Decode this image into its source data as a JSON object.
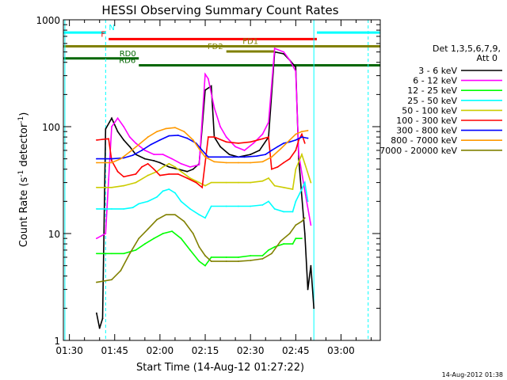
{
  "chart_data": {
    "type": "line",
    "title": "HESSI Observing Summary Count Rates",
    "xlabel": "Start Time (14-Aug-12 01:27:22)",
    "ylabel_main": "Count Rate (s",
    "ylabel_sup1": "-1",
    "ylabel_mid": " detector",
    "ylabel_sup2": "-1",
    "ylabel_end": ")",
    "yscale": "log",
    "ylim": [
      1,
      1000
    ],
    "xlim_min": [
      88,
      193
    ],
    "x_ticks": [
      {
        "min": 90,
        "label": "01:30"
      },
      {
        "min": 105,
        "label": "01:45"
      },
      {
        "min": 120,
        "label": "02:00"
      },
      {
        "min": 135,
        "label": "02:15"
      },
      {
        "min": 150,
        "label": "02:30"
      },
      {
        "min": 165,
        "label": "02:45"
      },
      {
        "min": 180,
        "label": "03:00"
      }
    ],
    "y_ticks": [
      {
        "value": 1,
        "label": "1"
      },
      {
        "value": 10,
        "label": "10"
      },
      {
        "value": 100,
        "label": "100"
      },
      {
        "value": 1000,
        "label": "1000"
      }
    ],
    "legend": {
      "title_line1": "Det 1,3,5,6,7,9,",
      "title_line2": "Att 0",
      "placement": "right"
    },
    "footer_timestamp": "14-Aug-2012 01:38",
    "series": [
      {
        "name": "3 - 6 keV",
        "color": "#000000",
        "points": [
          [
            99,
            1.8
          ],
          [
            100,
            1.3
          ],
          [
            101,
            1.6
          ],
          [
            102,
            95
          ],
          [
            104,
            120
          ],
          [
            106,
            90
          ],
          [
            108,
            75
          ],
          [
            110,
            65
          ],
          [
            112,
            55
          ],
          [
            115,
            50
          ],
          [
            118,
            48
          ],
          [
            120,
            46
          ],
          [
            123,
            42
          ],
          [
            126,
            40
          ],
          [
            129,
            38
          ],
          [
            131,
            40
          ],
          [
            133,
            45
          ],
          [
            135,
            220
          ],
          [
            137,
            240
          ],
          [
            138,
            80
          ],
          [
            140,
            65
          ],
          [
            143,
            55
          ],
          [
            146,
            52
          ],
          [
            150,
            55
          ],
          [
            153,
            60
          ],
          [
            156,
            80
          ],
          [
            158,
            500
          ],
          [
            161,
            480
          ],
          [
            163,
            420
          ],
          [
            165,
            360
          ],
          [
            166,
            50
          ],
          [
            168,
            10
          ],
          [
            169,
            3
          ],
          [
            170,
            5
          ],
          [
            171,
            2
          ]
        ]
      },
      {
        "name": "6 - 12 keV",
        "color": "#ff00ff",
        "points": [
          [
            99,
            9
          ],
          [
            102,
            10
          ],
          [
            103,
            32
          ],
          [
            104,
            100
          ],
          [
            106,
            120
          ],
          [
            108,
            100
          ],
          [
            110,
            80
          ],
          [
            112,
            70
          ],
          [
            115,
            60
          ],
          [
            118,
            55
          ],
          [
            121,
            55
          ],
          [
            124,
            50
          ],
          [
            127,
            45
          ],
          [
            130,
            42
          ],
          [
            133,
            44
          ],
          [
            135,
            310
          ],
          [
            136,
            280
          ],
          [
            138,
            150
          ],
          [
            140,
            100
          ],
          [
            142,
            80
          ],
          [
            145,
            65
          ],
          [
            148,
            60
          ],
          [
            151,
            70
          ],
          [
            154,
            85
          ],
          [
            156,
            110
          ],
          [
            158,
            540
          ],
          [
            161,
            500
          ],
          [
            163,
            420
          ],
          [
            165,
            330
          ],
          [
            166,
            55
          ],
          [
            168,
            25
          ],
          [
            170,
            12
          ]
        ]
      },
      {
        "name": "12 - 25 keV",
        "color": "#00ff00",
        "points": [
          [
            99,
            6.5
          ],
          [
            102,
            6.5
          ],
          [
            104,
            6.5
          ],
          [
            108,
            6.5
          ],
          [
            112,
            7
          ],
          [
            115,
            8
          ],
          [
            118,
            9
          ],
          [
            121,
            10
          ],
          [
            124,
            10.5
          ],
          [
            127,
            9
          ],
          [
            130,
            7
          ],
          [
            133,
            5.5
          ],
          [
            135,
            5
          ],
          [
            137,
            6
          ],
          [
            142,
            6
          ],
          [
            146,
            6
          ],
          [
            150,
            6.2
          ],
          [
            154,
            6.2
          ],
          [
            156,
            7
          ],
          [
            158,
            7.5
          ],
          [
            161,
            8
          ],
          [
            164,
            8
          ],
          [
            165,
            9
          ],
          [
            167,
            9
          ]
        ]
      },
      {
        "name": "25 - 50 keV",
        "color": "#00ffff",
        "points": [
          [
            99,
            17
          ],
          [
            104,
            17
          ],
          [
            108,
            17
          ],
          [
            111,
            17.5
          ],
          [
            113,
            19
          ],
          [
            116,
            20
          ],
          [
            119,
            22
          ],
          [
            121,
            25
          ],
          [
            123,
            26
          ],
          [
            125,
            24
          ],
          [
            127,
            20
          ],
          [
            130,
            17
          ],
          [
            133,
            15
          ],
          [
            135,
            14
          ],
          [
            137,
            18
          ],
          [
            142,
            18
          ],
          [
            146,
            18
          ],
          [
            150,
            18
          ],
          [
            154,
            18.5
          ],
          [
            156,
            20
          ],
          [
            158,
            17
          ],
          [
            161,
            16
          ],
          [
            164,
            16
          ],
          [
            165,
            20
          ],
          [
            167,
            26
          ],
          [
            168,
            30
          ],
          [
            169,
            20
          ]
        ]
      },
      {
        "name": "50 - 100 keV",
        "color": "#cccc00",
        "points": [
          [
            99,
            27
          ],
          [
            104,
            27
          ],
          [
            108,
            28
          ],
          [
            112,
            30
          ],
          [
            116,
            35
          ],
          [
            119,
            38
          ],
          [
            121,
            42
          ],
          [
            123,
            45
          ],
          [
            125,
            42
          ],
          [
            127,
            38
          ],
          [
            130,
            33
          ],
          [
            133,
            30
          ],
          [
            135,
            28
          ],
          [
            137,
            30
          ],
          [
            142,
            30
          ],
          [
            146,
            30
          ],
          [
            150,
            30
          ],
          [
            154,
            31
          ],
          [
            156,
            33
          ],
          [
            158,
            28
          ],
          [
            161,
            27
          ],
          [
            164,
            26
          ],
          [
            165,
            40
          ],
          [
            167,
            55
          ],
          [
            168,
            45
          ],
          [
            170,
            30
          ]
        ]
      },
      {
        "name": "100 - 300 keV",
        "color": "#ff0000",
        "points": [
          [
            99,
            75
          ],
          [
            103,
            77
          ],
          [
            104,
            48
          ],
          [
            106,
            38
          ],
          [
            108,
            34
          ],
          [
            112,
            36
          ],
          [
            114,
            42
          ],
          [
            116,
            45
          ],
          [
            118,
            40
          ],
          [
            120,
            35
          ],
          [
            123,
            36
          ],
          [
            126,
            36
          ],
          [
            129,
            33
          ],
          [
            132,
            30
          ],
          [
            134,
            27
          ],
          [
            136,
            80
          ],
          [
            138,
            80
          ],
          [
            142,
            72
          ],
          [
            146,
            70
          ],
          [
            150,
            72
          ],
          [
            154,
            77
          ],
          [
            156,
            80
          ],
          [
            157,
            40
          ],
          [
            159,
            42
          ],
          [
            161,
            46
          ],
          [
            163,
            50
          ],
          [
            165,
            60
          ],
          [
            166,
            75
          ],
          [
            167,
            85
          ],
          [
            168,
            70
          ]
        ]
      },
      {
        "name": "300 - 800 keV",
        "color": "#0000ff",
        "points": [
          [
            99,
            50
          ],
          [
            104,
            50
          ],
          [
            108,
            51
          ],
          [
            111,
            54
          ],
          [
            114,
            60
          ],
          [
            117,
            68
          ],
          [
            120,
            75
          ],
          [
            123,
            82
          ],
          [
            126,
            83
          ],
          [
            129,
            78
          ],
          [
            132,
            70
          ],
          [
            134,
            60
          ],
          [
            136,
            52
          ],
          [
            140,
            52
          ],
          [
            144,
            52
          ],
          [
            148,
            52
          ],
          [
            152,
            53
          ],
          [
            155,
            55
          ],
          [
            157,
            60
          ],
          [
            159,
            65
          ],
          [
            161,
            70
          ],
          [
            163,
            72
          ],
          [
            165,
            75
          ],
          [
            167,
            80
          ],
          [
            169,
            78
          ]
        ]
      },
      {
        "name": "800 - 7000 keV",
        "color": "#ff9900",
        "points": [
          [
            99,
            46
          ],
          [
            104,
            46
          ],
          [
            107,
            50
          ],
          [
            110,
            58
          ],
          [
            113,
            68
          ],
          [
            116,
            80
          ],
          [
            119,
            90
          ],
          [
            122,
            96
          ],
          [
            125,
            98
          ],
          [
            128,
            90
          ],
          [
            131,
            75
          ],
          [
            133,
            62
          ],
          [
            135,
            52
          ],
          [
            138,
            47
          ],
          [
            142,
            46
          ],
          [
            146,
            46
          ],
          [
            150,
            46
          ],
          [
            154,
            47
          ],
          [
            157,
            52
          ],
          [
            160,
            62
          ],
          [
            163,
            75
          ],
          [
            165,
            85
          ],
          [
            167,
            90
          ],
          [
            169,
            92
          ]
        ]
      },
      {
        "name": "7000 - 20000 keV",
        "color": "#808000",
        "points": [
          [
            99,
            3.5
          ],
          [
            104,
            3.7
          ],
          [
            107,
            4.5
          ],
          [
            110,
            6.5
          ],
          [
            113,
            9
          ],
          [
            116,
            11
          ],
          [
            119,
            13.5
          ],
          [
            122,
            15
          ],
          [
            125,
            15
          ],
          [
            128,
            13
          ],
          [
            131,
            10
          ],
          [
            133,
            7.5
          ],
          [
            135,
            6.2
          ],
          [
            137,
            5.5
          ],
          [
            142,
            5.5
          ],
          [
            146,
            5.5
          ],
          [
            150,
            5.6
          ],
          [
            154,
            5.8
          ],
          [
            157,
            6.5
          ],
          [
            160,
            8.5
          ],
          [
            163,
            10
          ],
          [
            165,
            12
          ],
          [
            167,
            13
          ],
          [
            168,
            14
          ]
        ]
      }
    ],
    "flag_bars": [
      {
        "label": "N",
        "color": "#00ffff",
        "y_value": 760,
        "segments": [
          [
            88,
            102
          ],
          [
            172,
            193
          ]
        ]
      },
      {
        "label": "F",
        "color": "#ff0000",
        "y_value": 660,
        "segments": [
          [
            103,
            172
          ]
        ]
      },
      {
        "label": "FD1",
        "color": "#808000",
        "y_value": 565,
        "segments": [
          [
            88,
            193
          ]
        ]
      },
      {
        "label": "FD2",
        "color": "#808000",
        "y_value": 505,
        "segments": [
          [
            142,
            158
          ]
        ]
      },
      {
        "label": "RD0",
        "color": "#006600",
        "y_value": 435,
        "segments": [
          [
            88,
            113
          ]
        ]
      },
      {
        "label": "RD6",
        "color": "#006600",
        "y_value": 375,
        "segments": [
          [
            113,
            193
          ]
        ]
      }
    ],
    "vertical_lines": [
      {
        "min": 88.5,
        "style": "solid",
        "color": "#00ffff"
      },
      {
        "min": 102,
        "style": "dashed",
        "color": "#00ffff"
      },
      {
        "min": 171,
        "style": "solid",
        "color": "#00ffff"
      },
      {
        "min": 189,
        "style": "dashed",
        "color": "#00ffff"
      }
    ]
  }
}
